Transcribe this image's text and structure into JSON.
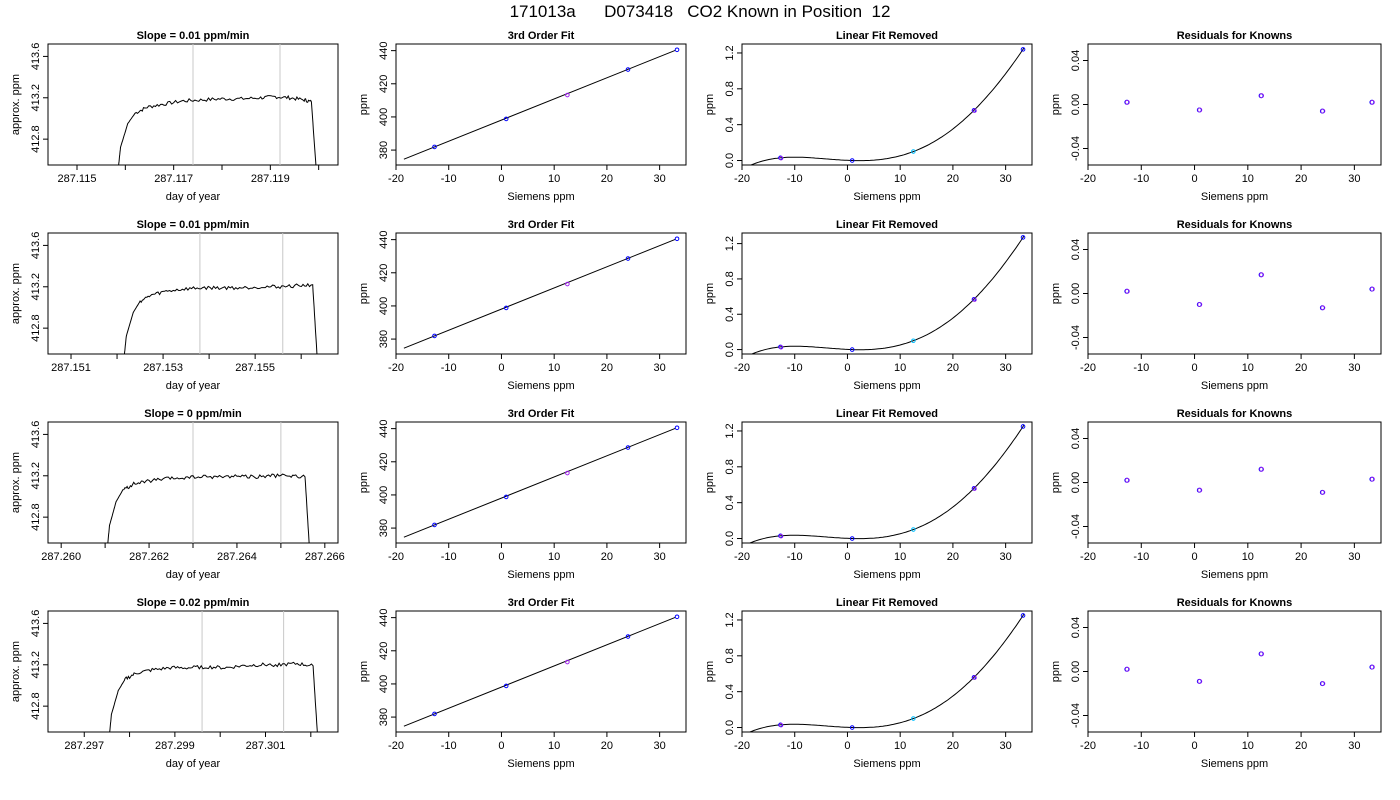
{
  "page_title": "171013a      D073418   CO2 Known in Position  12",
  "chart_data": [
    {
      "type": "line",
      "title": "Slope =  0.01  ppm/min",
      "xlabel": "day of year",
      "ylabel": "approx. ppm",
      "xlim": [
        287.1144,
        287.1204
      ],
      "ylim": [
        412.55,
        413.72
      ],
      "xticks": [
        287.115,
        287.117,
        287.119
      ],
      "xtick_labels": [
        "287.115",
        "287.117",
        "287.119"
      ],
      "xticks_minor": [
        287.116,
        287.118,
        287.12
      ],
      "yticks": [
        412.8,
        413.2,
        413.6
      ],
      "ytick_labels": [
        "412.8",
        "413.2",
        "413.6"
      ],
      "vlines": [
        287.1174,
        287.1192
      ],
      "points": [
        [
          287.11585,
          412.5
        ],
        [
          287.1159,
          412.72
        ],
        [
          287.11605,
          412.95
        ],
        [
          287.1162,
          413.05
        ],
        [
          287.11645,
          413.11
        ],
        [
          287.1168,
          413.14
        ],
        [
          287.1172,
          413.17
        ],
        [
          287.1176,
          413.18
        ],
        [
          287.118,
          413.19
        ],
        [
          287.1184,
          413.19
        ],
        [
          287.1188,
          413.2
        ],
        [
          287.1191,
          413.21
        ],
        [
          287.1194,
          413.2
        ],
        [
          287.1197,
          413.18
        ],
        [
          287.11985,
          413.16
        ],
        [
          287.11995,
          412.5
        ]
      ]
    },
    {
      "type": "line",
      "title": "3rd Order Fit",
      "xlabel": "Siemens ppm",
      "ylabel": "ppm",
      "xlim": [
        -20,
        35
      ],
      "ylim": [
        371,
        444
      ],
      "xticks": [
        -20,
        -10,
        0,
        10,
        20,
        30
      ],
      "yticks": [
        380,
        400,
        420,
        440
      ],
      "fit_line": [
        [
          -18.5,
          374.5
        ],
        [
          33,
          440.2
        ]
      ],
      "points": [
        [
          -12.7,
          381.9
        ],
        [
          0.9,
          398.8
        ],
        [
          12.5,
          413.2
        ],
        [
          24,
          428.6
        ],
        [
          33.3,
          440.5
        ]
      ]
    },
    {
      "type": "line",
      "title": "Linear Fit Removed",
      "xlabel": "Siemens ppm",
      "ylabel": "ppm",
      "xlim": [
        -20,
        35
      ],
      "ylim": [
        -0.05,
        1.3
      ],
      "xticks": [
        -20,
        -10,
        0,
        10,
        20,
        30
      ],
      "yticks": [
        0.0,
        0.4,
        0.8,
        1.2
      ],
      "ytick_labels": [
        "0.0",
        "0.4",
        "0.8",
        "1.2"
      ],
      "points": [
        [
          -12.7,
          0.03
        ],
        [
          0.9,
          0.0
        ],
        [
          12.5,
          0.1
        ],
        [
          24,
          0.56
        ],
        [
          33.3,
          1.24
        ]
      ]
    },
    {
      "type": "scatter",
      "title": "Residuals for Knowns",
      "xlabel": "Siemens ppm",
      "ylabel": "ppm",
      "xlim": [
        -20,
        35
      ],
      "ylim": [
        -0.055,
        0.055
      ],
      "xticks": [
        -20,
        -10,
        0,
        10,
        20,
        30
      ],
      "yticks": [
        -0.04,
        0.0,
        0.04
      ],
      "ytick_labels": [
        "-0.04",
        "0.00",
        "0.04"
      ],
      "points": [
        [
          -12.7,
          0.002
        ],
        [
          0.9,
          -0.005
        ],
        [
          12.5,
          0.008
        ],
        [
          24,
          -0.006
        ],
        [
          33.3,
          0.002
        ]
      ]
    },
    {
      "type": "line",
      "title": "Slope =  0.01  ppm/min",
      "xlabel": "day of year",
      "ylabel": "approx. ppm",
      "xlim": [
        287.1505,
        287.1568
      ],
      "ylim": [
        412.55,
        413.72
      ],
      "xticks": [
        287.151,
        287.153,
        287.155
      ],
      "xtick_labels": [
        "287.151",
        "287.153",
        "287.155"
      ],
      "xticks_minor": [
        287.152,
        287.154,
        287.156
      ],
      "yticks": [
        412.8,
        413.2,
        413.6
      ],
      "ytick_labels": [
        "412.8",
        "413.2",
        "413.6"
      ],
      "vlines": [
        287.1538,
        287.1556
      ],
      "points": [
        [
          287.15215,
          412.5
        ],
        [
          287.1522,
          412.72
        ],
        [
          287.15235,
          412.95
        ],
        [
          287.1525,
          413.06
        ],
        [
          287.15275,
          413.12
        ],
        [
          287.1531,
          413.16
        ],
        [
          287.1535,
          413.18
        ],
        [
          287.1539,
          413.19
        ],
        [
          287.1543,
          413.19
        ],
        [
          287.1547,
          413.19
        ],
        [
          287.1551,
          413.2
        ],
        [
          287.1555,
          413.2
        ],
        [
          287.1559,
          413.21
        ],
        [
          287.15625,
          413.22
        ],
        [
          287.15635,
          412.5
        ]
      ]
    },
    {
      "type": "line",
      "title": "3rd Order Fit",
      "xlabel": "Siemens ppm",
      "ylabel": "ppm",
      "xlim": [
        -20,
        35
      ],
      "ylim": [
        371,
        444
      ],
      "xticks": [
        -20,
        -10,
        0,
        10,
        20,
        30
      ],
      "yticks": [
        380,
        400,
        420,
        440
      ],
      "fit_line": [
        [
          -18.5,
          374.5
        ],
        [
          33,
          440.2
        ]
      ],
      "points": [
        [
          -12.7,
          381.9
        ],
        [
          0.9,
          398.8
        ],
        [
          12.5,
          413.2
        ],
        [
          24,
          428.6
        ],
        [
          33.3,
          440.5
        ]
      ]
    },
    {
      "type": "line",
      "title": "Linear Fit Removed",
      "xlabel": "Siemens ppm",
      "ylabel": "ppm",
      "xlim": [
        -20,
        35
      ],
      "ylim": [
        -0.05,
        1.32
      ],
      "xticks": [
        -20,
        -10,
        0,
        10,
        20,
        30
      ],
      "yticks": [
        0.0,
        0.4,
        0.8,
        1.2
      ],
      "ytick_labels": [
        "0.0",
        "0.4",
        "0.8",
        "1.2"
      ],
      "points": [
        [
          -12.7,
          0.03
        ],
        [
          0.9,
          0.0
        ],
        [
          12.5,
          0.1
        ],
        [
          24,
          0.57
        ],
        [
          33.3,
          1.27
        ]
      ]
    },
    {
      "type": "scatter",
      "title": "Residuals for Knowns",
      "xlabel": "Siemens ppm",
      "ylabel": "ppm",
      "xlim": [
        -20,
        35
      ],
      "ylim": [
        -0.055,
        0.055
      ],
      "xticks": [
        -20,
        -10,
        0,
        10,
        20,
        30
      ],
      "yticks": [
        -0.04,
        0.0,
        0.04
      ],
      "ytick_labels": [
        "-0.04",
        "0.00",
        "0.04"
      ],
      "points": [
        [
          -12.7,
          0.002
        ],
        [
          0.9,
          -0.01
        ],
        [
          12.5,
          0.017
        ],
        [
          24,
          -0.013
        ],
        [
          33.3,
          0.004
        ]
      ]
    },
    {
      "type": "line",
      "title": "Slope =  0  ppm/min",
      "xlabel": "day of year",
      "ylabel": "approx. ppm",
      "xlim": [
        287.2597,
        287.2663
      ],
      "ylim": [
        412.55,
        413.72
      ],
      "xticks": [
        287.26,
        287.262,
        287.264,
        287.266
      ],
      "xtick_labels": [
        "287.260",
        "287.262",
        "287.264",
        "287.266"
      ],
      "xticks_minor": [
        287.261,
        287.263,
        287.265
      ],
      "yticks": [
        412.8,
        413.2,
        413.6
      ],
      "ytick_labels": [
        "412.8",
        "413.2",
        "413.6"
      ],
      "vlines": [
        287.263,
        287.265
      ],
      "points": [
        [
          287.26105,
          412.5
        ],
        [
          287.2611,
          412.72
        ],
        [
          287.26125,
          412.95
        ],
        [
          287.2614,
          413.06
        ],
        [
          287.26165,
          413.12
        ],
        [
          287.262,
          413.15
        ],
        [
          287.2624,
          413.17
        ],
        [
          287.2628,
          413.18
        ],
        [
          287.2632,
          413.19
        ],
        [
          287.2636,
          413.19
        ],
        [
          287.264,
          413.2
        ],
        [
          287.2644,
          413.19
        ],
        [
          287.2648,
          413.2
        ],
        [
          287.2652,
          413.2
        ],
        [
          287.26555,
          413.19
        ],
        [
          287.26565,
          412.5
        ]
      ]
    },
    {
      "type": "line",
      "title": "3rd Order Fit",
      "xlabel": "Siemens ppm",
      "ylabel": "ppm",
      "xlim": [
        -20,
        35
      ],
      "ylim": [
        371,
        444
      ],
      "xticks": [
        -20,
        -10,
        0,
        10,
        20,
        30
      ],
      "yticks": [
        380,
        400,
        420,
        440
      ],
      "fit_line": [
        [
          -18.5,
          374.5
        ],
        [
          33,
          440.2
        ]
      ],
      "points": [
        [
          -12.7,
          381.9
        ],
        [
          0.9,
          398.8
        ],
        [
          12.5,
          413.2
        ],
        [
          24,
          428.6
        ],
        [
          33.3,
          440.5
        ]
      ]
    },
    {
      "type": "line",
      "title": "Linear Fit Removed",
      "xlabel": "Siemens ppm",
      "ylabel": "ppm",
      "xlim": [
        -20,
        35
      ],
      "ylim": [
        -0.05,
        1.3
      ],
      "xticks": [
        -20,
        -10,
        0,
        10,
        20,
        30
      ],
      "yticks": [
        0.0,
        0.4,
        0.8,
        1.2
      ],
      "ytick_labels": [
        "0.0",
        "0.4",
        "0.8",
        "1.2"
      ],
      "points": [
        [
          -12.7,
          0.03
        ],
        [
          0.9,
          0.0
        ],
        [
          12.5,
          0.1
        ],
        [
          24,
          0.56
        ],
        [
          33.3,
          1.25
        ]
      ]
    },
    {
      "type": "scatter",
      "title": "Residuals for Knowns",
      "xlabel": "Siemens ppm",
      "ylabel": "ppm",
      "xlim": [
        -20,
        35
      ],
      "ylim": [
        -0.055,
        0.055
      ],
      "xticks": [
        -20,
        -10,
        0,
        10,
        20,
        30
      ],
      "yticks": [
        -0.04,
        0.0,
        0.04
      ],
      "ytick_labels": [
        "-0.04",
        "0.00",
        "0.04"
      ],
      "points": [
        [
          -12.7,
          0.002
        ],
        [
          0.9,
          -0.007
        ],
        [
          12.5,
          0.012
        ],
        [
          24,
          -0.009
        ],
        [
          33.3,
          0.003
        ]
      ]
    },
    {
      "type": "line",
      "title": "Slope =  0.02  ppm/min",
      "xlabel": "day of year",
      "ylabel": "approx. ppm",
      "xlim": [
        287.2962,
        287.3026
      ],
      "ylim": [
        412.55,
        413.72
      ],
      "xticks": [
        287.297,
        287.299,
        287.301
      ],
      "xtick_labels": [
        "287.297",
        "287.299",
        "287.301"
      ],
      "xticks_minor": [
        287.298,
        287.3,
        287.302
      ],
      "yticks": [
        412.8,
        413.2,
        413.6
      ],
      "ytick_labels": [
        "412.8",
        "413.2",
        "413.6"
      ],
      "vlines": [
        287.2996,
        287.3014
      ],
      "points": [
        [
          287.29755,
          412.5
        ],
        [
          287.2976,
          412.72
        ],
        [
          287.29775,
          412.95
        ],
        [
          287.2979,
          413.06
        ],
        [
          287.29815,
          413.12
        ],
        [
          287.2985,
          413.15
        ],
        [
          287.2989,
          413.17
        ],
        [
          287.2993,
          413.17
        ],
        [
          287.2997,
          413.18
        ],
        [
          287.3001,
          413.17
        ],
        [
          287.3005,
          413.19
        ],
        [
          287.3009,
          413.2
        ],
        [
          287.3013,
          413.2
        ],
        [
          287.3017,
          413.21
        ],
        [
          287.30205,
          413.19
        ],
        [
          287.30215,
          412.5
        ]
      ]
    },
    {
      "type": "line",
      "title": "3rd Order Fit",
      "xlabel": "Siemens ppm",
      "ylabel": "ppm",
      "xlim": [
        -20,
        35
      ],
      "ylim": [
        371,
        444
      ],
      "xticks": [
        -20,
        -10,
        0,
        10,
        20,
        30
      ],
      "yticks": [
        380,
        400,
        420,
        440
      ],
      "fit_line": [
        [
          -18.5,
          374.5
        ],
        [
          33,
          440.2
        ]
      ],
      "points": [
        [
          -12.7,
          381.9
        ],
        [
          0.9,
          398.8
        ],
        [
          12.5,
          413.2
        ],
        [
          24,
          428.6
        ],
        [
          33.3,
          440.5
        ]
      ]
    },
    {
      "type": "line",
      "title": "Linear Fit Removed",
      "xlabel": "Siemens ppm",
      "ylabel": "ppm",
      "xlim": [
        -20,
        35
      ],
      "ylim": [
        -0.05,
        1.3
      ],
      "xticks": [
        -20,
        -10,
        0,
        10,
        20,
        30
      ],
      "yticks": [
        0.0,
        0.4,
        0.8,
        1.2
      ],
      "ytick_labels": [
        "0.0",
        "0.4",
        "0.8",
        "1.2"
      ],
      "points": [
        [
          -12.7,
          0.03
        ],
        [
          0.9,
          0.0
        ],
        [
          12.5,
          0.1
        ],
        [
          24,
          0.56
        ],
        [
          33.3,
          1.25
        ]
      ]
    },
    {
      "type": "scatter",
      "title": "Residuals for Knowns",
      "xlabel": "Siemens ppm",
      "ylabel": "ppm",
      "xlim": [
        -20,
        35
      ],
      "ylim": [
        -0.055,
        0.055
      ],
      "xticks": [
        -20,
        -10,
        0,
        10,
        20,
        30
      ],
      "yticks": [
        -0.04,
        0.0,
        0.04
      ],
      "ytick_labels": [
        "-0.04",
        "0.00",
        "0.04"
      ],
      "points": [
        [
          -12.7,
          0.002
        ],
        [
          0.9,
          -0.009
        ],
        [
          12.5,
          0.016
        ],
        [
          24,
          -0.011
        ],
        [
          33.3,
          0.004
        ]
      ]
    }
  ],
  "colors": {
    "axis": "#000000",
    "curve": "#000000",
    "vline": "#c8c8c8",
    "point_blue": "#0000ff",
    "point_purple": "#a020f0",
    "point_cyan": "#00bfff"
  }
}
